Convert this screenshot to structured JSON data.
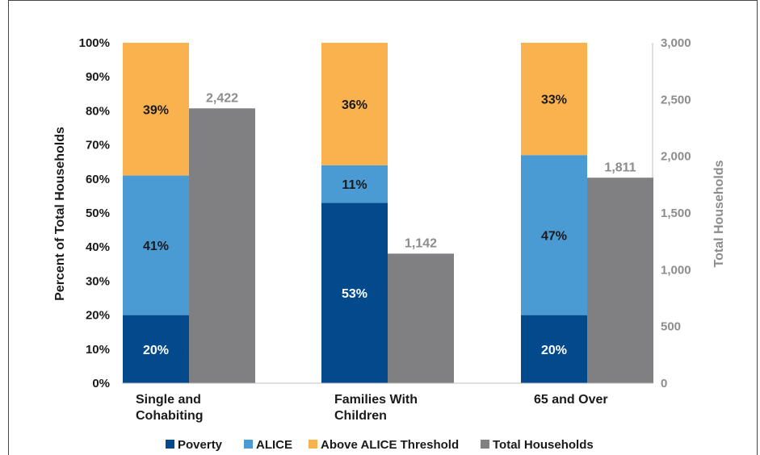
{
  "chart_data": {
    "type": "bar",
    "categories": [
      [
        "Single and",
        "Cohabiting"
      ],
      [
        "Families With",
        "Children"
      ],
      [
        "65 and Over"
      ]
    ],
    "stacked_series": [
      {
        "name": "Poverty",
        "color": "#034A8C",
        "values": [
          20,
          53,
          20
        ],
        "labels": [
          "20%",
          "53%",
          "20%"
        ],
        "label_color": "#ffffff"
      },
      {
        "name": "ALICE",
        "color": "#4A9AD4",
        "values": [
          41,
          11,
          47
        ],
        "labels": [
          "41%",
          "11%",
          "47%"
        ],
        "label_color": "#1a1a1a"
      },
      {
        "name": "Above ALICE Threshold",
        "color": "#F9B24E",
        "values": [
          39,
          36,
          33
        ],
        "labels": [
          "39%",
          "36%",
          "33%"
        ],
        "label_color": "#1a1a1a"
      }
    ],
    "secondary_series": {
      "name": "Total Households",
      "color": "#808083",
      "label_color": "#8c8c8c",
      "values": [
        2422,
        1142,
        1811
      ],
      "labels": [
        "2,422",
        "1,142",
        "1,811"
      ]
    },
    "ylabel": "Percent of Total Households",
    "y2label": "Total Households",
    "ylim": [
      0,
      100
    ],
    "y2lim": [
      0,
      3000
    ],
    "yticks": [
      "0%",
      "10%",
      "20%",
      "30%",
      "40%",
      "50%",
      "60%",
      "70%",
      "80%",
      "90%",
      "100%"
    ],
    "y2ticks": [
      "0",
      "500",
      "1,000",
      "1,500",
      "2,000",
      "2,500",
      "3,000"
    ],
    "legend_position": "bottom"
  }
}
